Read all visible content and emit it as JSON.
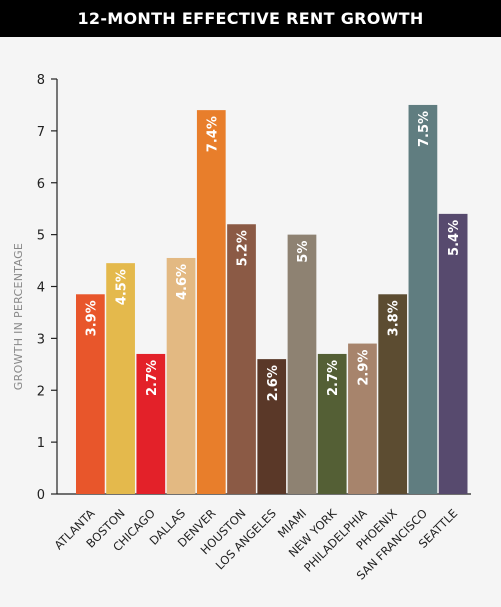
{
  "chart_data": {
    "type": "bar",
    "title": "12-MONTH EFFECTIVE RENT GROWTH",
    "xlabel": "",
    "ylabel": "GROWTH IN PERCENTAGE",
    "ylim": [
      0,
      8
    ],
    "yticks": [
      0,
      1,
      2,
      3,
      4,
      5,
      6,
      7,
      8
    ],
    "grid": false,
    "legend": "none",
    "categories": [
      "ATLANTA",
      "BOSTON",
      "CHICAGO",
      "DALLAS",
      "DENVER",
      "HOUSTON",
      "LOS ANGELES",
      "MIAMI",
      "NEW YORK",
      "PHILADELPHIA",
      "PHOENIX",
      "SAN FRANCISCO",
      "SEATTLE"
    ],
    "values": [
      3.85,
      4.45,
      2.7,
      4.55,
      7.4,
      5.2,
      2.6,
      5.0,
      2.7,
      2.9,
      3.85,
      7.5,
      5.4
    ],
    "data_labels": [
      "3.9%",
      "4.5%",
      "2.7%",
      "4.6%",
      "7.4%",
      "5.2%",
      "2.6%",
      "5%",
      "2.7%",
      "2.9%",
      "3.8%",
      "7.5%",
      "5.4%"
    ],
    "colors": [
      "#e8562b",
      "#e4b94c",
      "#e32129",
      "#e3b982",
      "#e87e2b",
      "#8b5a45",
      "#5a3828",
      "#8e8272",
      "#545f35",
      "#a7846c",
      "#5c4c31",
      "#607d80",
      "#574a6e"
    ]
  }
}
